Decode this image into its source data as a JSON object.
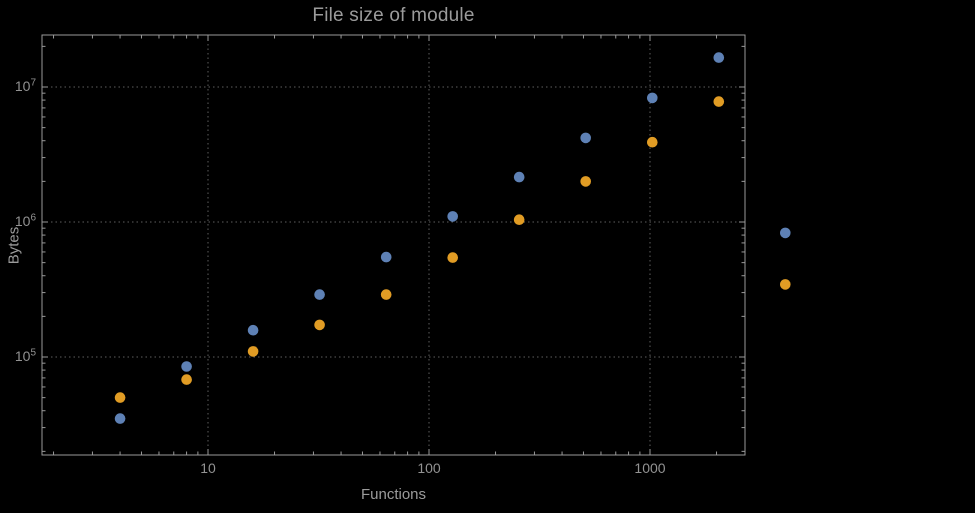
{
  "chart_data": {
    "type": "scatter",
    "title": "File size of module",
    "xlabel": "Functions",
    "ylabel": "Bytes",
    "x_scale": "log",
    "y_scale": "log",
    "grid": "dotted",
    "legend": "none",
    "x_range": [
      1.8,
      2650
    ],
    "y_range": [
      19000,
      24000000
    ],
    "x_ticks": [
      {
        "value": 10,
        "label": "10"
      },
      {
        "value": 100,
        "label": "100"
      },
      {
        "value": 1000,
        "label": "1000"
      }
    ],
    "y_ticks": [
      {
        "value": 100000,
        "base": "10",
        "exp": "5"
      },
      {
        "value": 1000000,
        "base": "10",
        "exp": "6"
      },
      {
        "value": 10000000,
        "base": "10",
        "exp": "7"
      }
    ],
    "x": [
      4,
      8,
      16,
      32,
      64,
      128,
      256,
      512,
      1024,
      2048,
      4096
    ],
    "series": [
      {
        "name": "blue-series",
        "color": "#5E81B5",
        "values": [
          35000,
          85000,
          158000,
          290000,
          550000,
          1100000,
          2150000,
          4200000,
          8300000,
          16500000,
          830000
        ]
      },
      {
        "name": "orange-series",
        "color": "#E19C24",
        "values": [
          50000,
          68000,
          110000,
          173000,
          290000,
          545000,
          1040000,
          2000000,
          3900000,
          7800000,
          345000
        ]
      }
    ]
  },
  "style_colors": {
    "background": "#000000",
    "frame": "#9a9a9a",
    "gridline": "#5e5e5e",
    "text": "#9b9b9b"
  }
}
